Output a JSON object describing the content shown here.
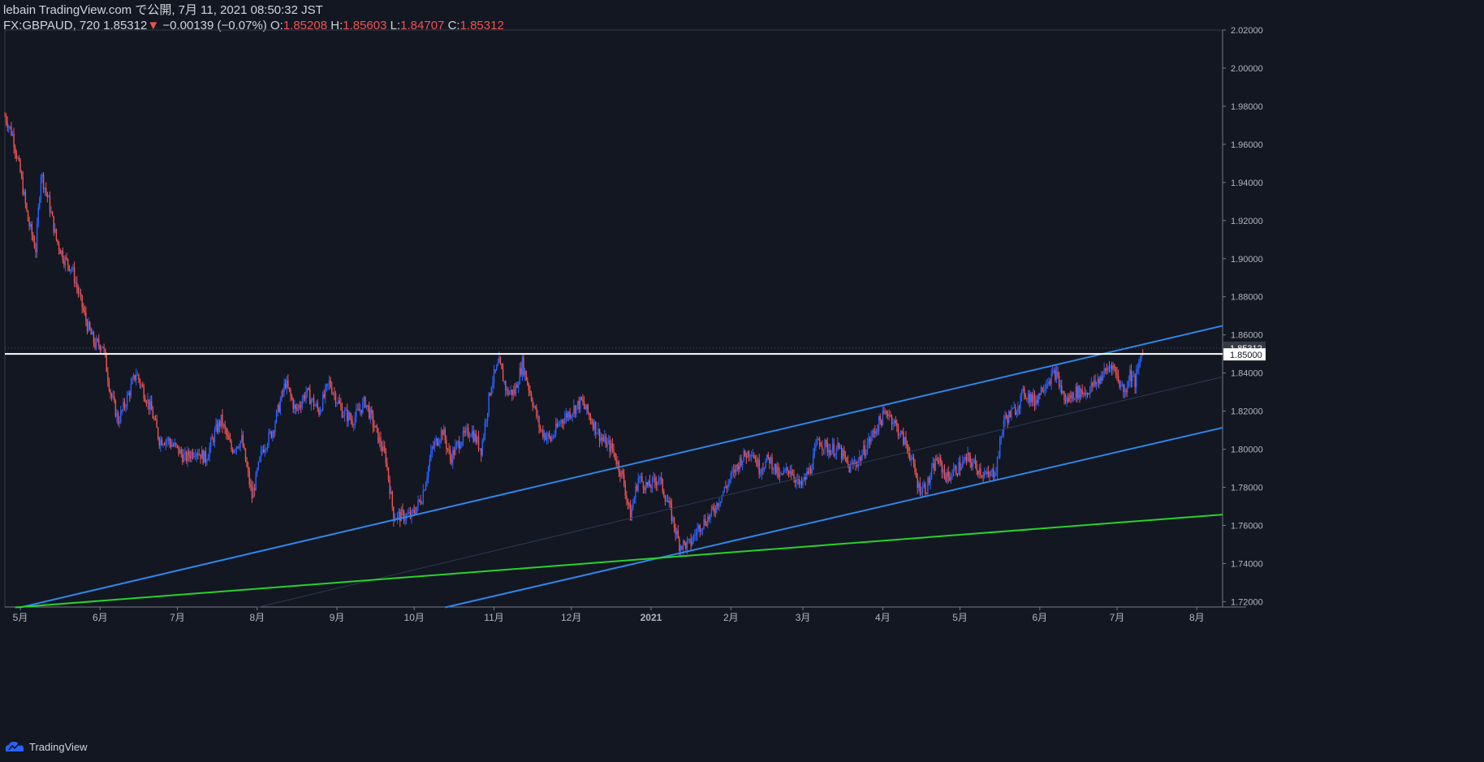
{
  "header": {
    "line1": "lebain TradingView.com で公開, 7月 11, 2021 08:50:32 JST",
    "symbol": "FX:GBPAUD, 720",
    "last": "1.85312",
    "change": "−0.00139 (−0.07%)",
    "o_label": "O:",
    "o_value": "1.85208",
    "h_label": "H:",
    "h_value": "1.85603",
    "l_label": "L:",
    "l_value": "1.84707",
    "c_label": "C:",
    "c_value": "1.85312"
  },
  "footer": {
    "brand": "TradingView"
  },
  "colors": {
    "background": "#131722",
    "up": "#2962ff",
    "down": "#ef5350",
    "channel": "#2f86e8",
    "support": "#28d32a",
    "level": "#ffffff"
  },
  "chart_data": {
    "type": "candlestick",
    "title": "FX:GBPAUD, 720",
    "x_tick_labels": [
      "5月",
      "6月",
      "7月",
      "8月",
      "9月",
      "10月",
      "11月",
      "12月",
      "2021",
      "2月",
      "3月",
      "4月",
      "5月",
      "6月",
      "7月",
      "8月"
    ],
    "x_range": [
      "2020-04-25",
      "2021-08-11"
    ],
    "y_tick_labels": [
      "1.72000",
      "1.74000",
      "1.76000",
      "1.78000",
      "1.80000",
      "1.82000",
      "1.84000",
      "1.86000",
      "1.88000",
      "1.90000",
      "1.92000",
      "1.94000",
      "1.96000",
      "1.98000",
      "2.00000",
      "2.02000"
    ],
    "ylim": [
      1.7172,
      2.02
    ],
    "last_price_label": "1.85312",
    "level_label": "1.85000",
    "price_path": [
      [
        "2020-04-25",
        1.975
      ],
      [
        "2020-04-28",
        1.965
      ],
      [
        "2020-05-01",
        1.945
      ],
      [
        "2020-05-04",
        1.92
      ],
      [
        "2020-05-07",
        1.905
      ],
      [
        "2020-05-09",
        1.945
      ],
      [
        "2020-05-12",
        1.93
      ],
      [
        "2020-05-15",
        1.91
      ],
      [
        "2020-05-18",
        1.9
      ],
      [
        "2020-05-21",
        1.895
      ],
      [
        "2020-05-24",
        1.88
      ],
      [
        "2020-05-27",
        1.865
      ],
      [
        "2020-05-30",
        1.855
      ],
      [
        "2020-06-02",
        1.855
      ],
      [
        "2020-06-05",
        1.83
      ],
      [
        "2020-06-08",
        1.815
      ],
      [
        "2020-06-11",
        1.825
      ],
      [
        "2020-06-15",
        1.84
      ],
      [
        "2020-06-18",
        1.83
      ],
      [
        "2020-06-21",
        1.82
      ],
      [
        "2020-06-24",
        1.805
      ],
      [
        "2020-06-27",
        1.805
      ],
      [
        "2020-07-01",
        1.8
      ],
      [
        "2020-07-04",
        1.795
      ],
      [
        "2020-07-08",
        1.8
      ],
      [
        "2020-07-12",
        1.795
      ],
      [
        "2020-07-16",
        1.81
      ],
      [
        "2020-07-18",
        1.815
      ],
      [
        "2020-07-22",
        1.8
      ],
      [
        "2020-07-26",
        1.805
      ],
      [
        "2020-07-30",
        1.775
      ],
      [
        "2020-08-03",
        1.8
      ],
      [
        "2020-08-07",
        1.81
      ],
      [
        "2020-08-12",
        1.835
      ],
      [
        "2020-08-16",
        1.82
      ],
      [
        "2020-08-20",
        1.83
      ],
      [
        "2020-08-25",
        1.82
      ],
      [
        "2020-08-29",
        1.835
      ],
      [
        "2020-09-03",
        1.82
      ],
      [
        "2020-09-07",
        1.815
      ],
      [
        "2020-09-12",
        1.825
      ],
      [
        "2020-09-16",
        1.81
      ],
      [
        "2020-09-20",
        1.795
      ],
      [
        "2020-09-23",
        1.765
      ],
      [
        "2020-09-26",
        1.765
      ],
      [
        "2020-09-30",
        1.765
      ],
      [
        "2020-10-04",
        1.775
      ],
      [
        "2020-10-08",
        1.8
      ],
      [
        "2020-10-12",
        1.81
      ],
      [
        "2020-10-15",
        1.795
      ],
      [
        "2020-10-19",
        1.805
      ],
      [
        "2020-10-23",
        1.81
      ],
      [
        "2020-10-27",
        1.8
      ],
      [
        "2020-10-31",
        1.835
      ],
      [
        "2020-11-03",
        1.845
      ],
      [
        "2020-11-06",
        1.83
      ],
      [
        "2020-11-09",
        1.83
      ],
      [
        "2020-11-12",
        1.845
      ],
      [
        "2020-11-15",
        1.83
      ],
      [
        "2020-11-19",
        1.81
      ],
      [
        "2020-11-23",
        1.805
      ],
      [
        "2020-11-27",
        1.815
      ],
      [
        "2020-12-01",
        1.82
      ],
      [
        "2020-12-05",
        1.825
      ],
      [
        "2020-12-09",
        1.815
      ],
      [
        "2020-12-13",
        1.805
      ],
      [
        "2020-12-17",
        1.8
      ],
      [
        "2020-12-21",
        1.785
      ],
      [
        "2020-12-24",
        1.765
      ],
      [
        "2020-12-27",
        1.785
      ],
      [
        "2020-12-31",
        1.78
      ],
      [
        "2021-01-04",
        1.785
      ],
      [
        "2021-01-08",
        1.77
      ],
      [
        "2021-01-12",
        1.75
      ],
      [
        "2021-01-16",
        1.75
      ],
      [
        "2021-01-20",
        1.76
      ],
      [
        "2021-01-24",
        1.765
      ],
      [
        "2021-01-28",
        1.775
      ],
      [
        "2021-02-01",
        1.785
      ],
      [
        "2021-02-05",
        1.795
      ],
      [
        "2021-02-09",
        1.8
      ],
      [
        "2021-02-12",
        1.79
      ],
      [
        "2021-02-16",
        1.795
      ],
      [
        "2021-02-20",
        1.785
      ],
      [
        "2021-02-24",
        1.79
      ],
      [
        "2021-02-28",
        1.78
      ],
      [
        "2021-03-04",
        1.79
      ],
      [
        "2021-03-07",
        1.805
      ],
      [
        "2021-03-11",
        1.8
      ],
      [
        "2021-03-15",
        1.8
      ],
      [
        "2021-03-19",
        1.79
      ],
      [
        "2021-03-23",
        1.795
      ],
      [
        "2021-03-27",
        1.805
      ],
      [
        "2021-03-31",
        1.815
      ],
      [
        "2021-04-03",
        1.82
      ],
      [
        "2021-04-07",
        1.81
      ],
      [
        "2021-04-11",
        1.8
      ],
      [
        "2021-04-15",
        1.78
      ],
      [
        "2021-04-18",
        1.78
      ],
      [
        "2021-04-22",
        1.795
      ],
      [
        "2021-04-26",
        1.785
      ],
      [
        "2021-04-30",
        1.79
      ],
      [
        "2021-05-04",
        1.795
      ],
      [
        "2021-05-08",
        1.79
      ],
      [
        "2021-05-12",
        1.785
      ],
      [
        "2021-05-15",
        1.79
      ],
      [
        "2021-05-18",
        1.815
      ],
      [
        "2021-05-22",
        1.82
      ],
      [
        "2021-05-26",
        1.83
      ],
      [
        "2021-05-30",
        1.825
      ],
      [
        "2021-06-03",
        1.835
      ],
      [
        "2021-06-07",
        1.84
      ],
      [
        "2021-06-11",
        1.825
      ],
      [
        "2021-06-15",
        1.83
      ],
      [
        "2021-06-19",
        1.83
      ],
      [
        "2021-06-23",
        1.835
      ],
      [
        "2021-06-26",
        1.84
      ],
      [
        "2021-06-29",
        1.845
      ],
      [
        "2021-07-02",
        1.835
      ],
      [
        "2021-07-04",
        1.83
      ],
      [
        "2021-07-06",
        1.84
      ],
      [
        "2021-07-08",
        1.835
      ],
      [
        "2021-07-11",
        1.85312
      ]
    ],
    "trendlines": [
      {
        "kind": "channel-upper",
        "from": [
          "2020-05-01",
          1.717
        ],
        "to": [
          "2021-08-11",
          1.8648
        ]
      },
      {
        "kind": "channel-lower",
        "from": [
          "2020-10-13",
          1.717
        ],
        "to": [
          "2021-08-11",
          1.8113
        ]
      },
      {
        "kind": "channel-mid",
        "from": [
          "2020-08-01",
          1.717
        ],
        "to": [
          "2021-08-11",
          1.838
        ]
      },
      {
        "kind": "support",
        "from": [
          "2020-04-29",
          1.717
        ],
        "to": [
          "2021-08-11",
          1.7657
        ]
      },
      {
        "kind": "level",
        "from": [
          "2020-04-25",
          1.85
        ],
        "to": [
          "2021-08-11",
          1.85
        ]
      }
    ]
  }
}
